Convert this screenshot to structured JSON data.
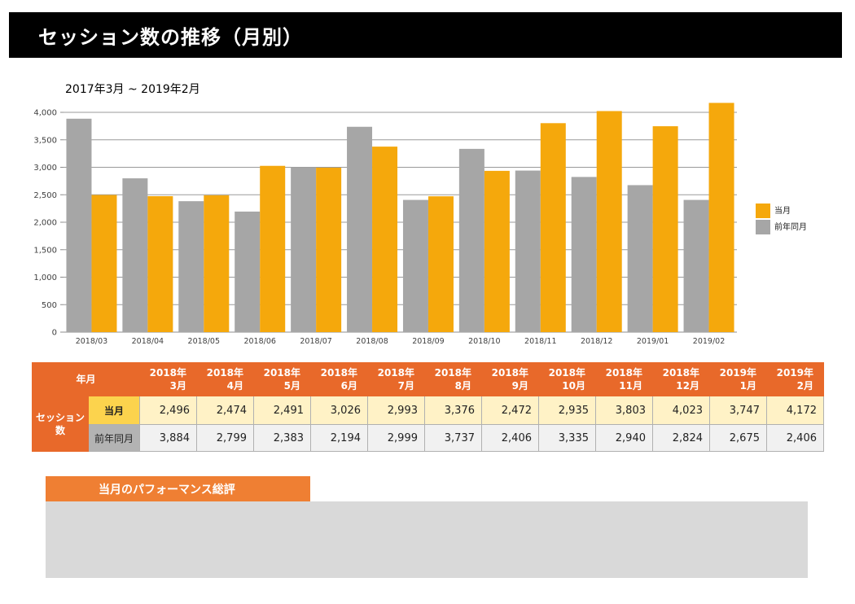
{
  "header": {
    "title": "セッション数の推移（月別）"
  },
  "period": "2017年3月 ~ 2019年2月",
  "colors": {
    "current": "#f5a80c",
    "previous": "#a6a6a6",
    "header_orange": "#e8692a",
    "eval_orange": "#ef7f33"
  },
  "chart_data": {
    "type": "bar",
    "categories": [
      "2018/03",
      "2018/04",
      "2018/05",
      "2018/06",
      "2018/07",
      "2018/08",
      "2018/09",
      "2018/10",
      "2018/11",
      "2018/12",
      "2019/01",
      "2019/02"
    ],
    "series": [
      {
        "name": "前年同月",
        "values": [
          3884,
          2799,
          2383,
          2194,
          2999,
          3737,
          2406,
          3335,
          2940,
          2824,
          2675,
          2406
        ]
      },
      {
        "name": "当月",
        "values": [
          2496,
          2474,
          2491,
          3026,
          2993,
          3376,
          2472,
          2935,
          3803,
          4023,
          3747,
          4172
        ]
      }
    ],
    "yticks": [
      "0",
      "500",
      "1,000",
      "1,500",
      "2,000",
      "2,500",
      "3,000",
      "3,500",
      "4,000"
    ],
    "ylim": [
      0,
      4000
    ],
    "grid": true,
    "legend": "right"
  },
  "table": {
    "corner": "年月",
    "metric_label": "セッション数",
    "columns": [
      {
        "year": "2018年",
        "month": "3月"
      },
      {
        "year": "2018年",
        "month": "4月"
      },
      {
        "year": "2018年",
        "month": "5月"
      },
      {
        "year": "2018年",
        "month": "6月"
      },
      {
        "year": "2018年",
        "month": "7月"
      },
      {
        "year": "2018年",
        "month": "8月"
      },
      {
        "year": "2018年",
        "month": "9月"
      },
      {
        "year": "2018年",
        "month": "10月"
      },
      {
        "year": "2018年",
        "month": "11月"
      },
      {
        "year": "2018年",
        "month": "12月"
      },
      {
        "year": "2019年",
        "month": "1月"
      },
      {
        "year": "2019年",
        "month": "2月"
      }
    ],
    "rows": [
      {
        "label": "当月",
        "values": [
          "2,496",
          "2,474",
          "2,491",
          "3,026",
          "2,993",
          "3,376",
          "2,472",
          "2,935",
          "3,803",
          "4,023",
          "3,747",
          "4,172"
        ]
      },
      {
        "label": "前年同月",
        "values": [
          "3,884",
          "2,799",
          "2,383",
          "2,194",
          "2,999",
          "3,737",
          "2,406",
          "3,335",
          "2,940",
          "2,824",
          "2,675",
          "2,406"
        ]
      }
    ]
  },
  "evaluation": {
    "title": "当月のパフォーマンス総評"
  }
}
